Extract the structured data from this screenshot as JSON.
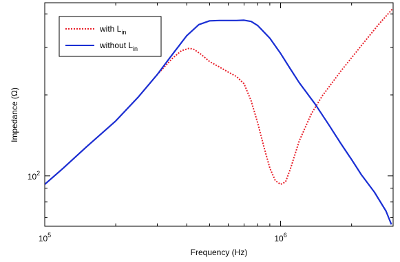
{
  "chart_data": {
    "type": "line",
    "title": "",
    "xlabel": "Frequency (Hz)",
    "ylabel": "Impedance (Ω)",
    "xscale": "log",
    "yscale": "log",
    "xlim": [
      100000,
      3000000
    ],
    "ylim": [
      65,
      440
    ],
    "grid": false,
    "legend_position": "top-left",
    "x_tick_labels": [
      {
        "value": 100000,
        "base": "10",
        "exp": "5"
      },
      {
        "value": 1000000,
        "base": "10",
        "exp": "6"
      }
    ],
    "y_tick_labels": [
      {
        "value": 100,
        "base": "10",
        "exp": "2"
      }
    ],
    "series": [
      {
        "name_main": "with L",
        "name_sub": "in",
        "color": "#e8202a",
        "style": "dotted",
        "x": [
          100000,
          120000,
          150000,
          200000,
          250000,
          300000,
          350000,
          380000,
          410000,
          430000,
          460000,
          500000,
          550000,
          600000,
          650000,
          700000,
          750000,
          800000,
          850000,
          900000,
          950000,
          1000000,
          1050000,
          1100000,
          1200000,
          1350000,
          1500000,
          1800000,
          2200000,
          2600000,
          3000000
        ],
        "y": [
          93,
          107,
          128,
          160,
          197,
          238,
          275,
          292,
          298,
          295,
          283,
          266,
          254,
          243,
          234,
          220,
          190,
          157,
          128,
          107,
          96,
          93,
          95,
          106,
          135,
          170,
          198,
          245,
          305,
          365,
          420
        ]
      },
      {
        "name_main": "without L",
        "name_sub": "in",
        "color": "#1a2fd4",
        "style": "solid",
        "x": [
          100000,
          120000,
          150000,
          200000,
          250000,
          300000,
          350000,
          400000,
          450000,
          500000,
          550000,
          600000,
          650000,
          700000,
          750000,
          800000,
          900000,
          1000000,
          1100000,
          1200000,
          1400000,
          1600000,
          1800000,
          2000000,
          2200000,
          2500000,
          2800000,
          2950000
        ],
        "y": [
          93,
          107,
          128,
          160,
          197,
          238,
          285,
          332,
          365,
          377,
          378,
          378,
          378,
          379,
          375,
          362,
          325,
          285,
          250,
          222,
          185,
          155,
          132,
          115,
          101,
          87,
          74,
          66
        ]
      }
    ]
  }
}
